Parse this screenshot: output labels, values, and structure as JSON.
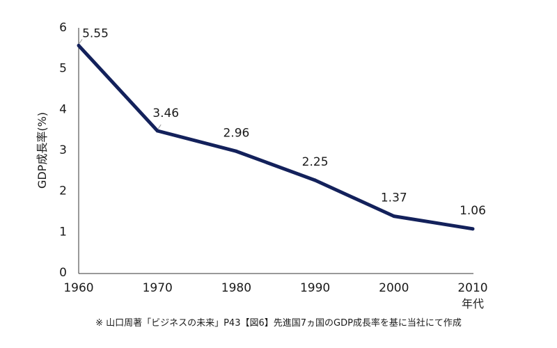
{
  "chart_data": {
    "type": "line",
    "x": [
      1960,
      1970,
      1980,
      1990,
      2000,
      2010
    ],
    "x_tick_labels": [
      "1960",
      "1970",
      "1980",
      "1990",
      "2000",
      "2010"
    ],
    "series": [
      {
        "values": [
          5.55,
          3.46,
          2.96,
          2.25,
          1.37,
          1.06
        ]
      }
    ],
    "data_labels": [
      "5.55",
      "3.46",
      "2.96",
      "2.25",
      "1.37",
      "1.06"
    ],
    "ylabel": "GDP成長率(%)",
    "xlabel": "年代",
    "ylim": [
      0,
      6
    ],
    "y_ticks": [
      0,
      1,
      2,
      3,
      4,
      5,
      6
    ],
    "y_tick_labels": [
      "0",
      "1",
      "2",
      "3",
      "4",
      "5",
      "6"
    ],
    "grid": false,
    "line_color": "#13215b"
  },
  "footnote": "※ 山口周著「ビジネスの未来」P43【図6】先進国7ヵ国のGDP成長率を基に当社にて作成"
}
